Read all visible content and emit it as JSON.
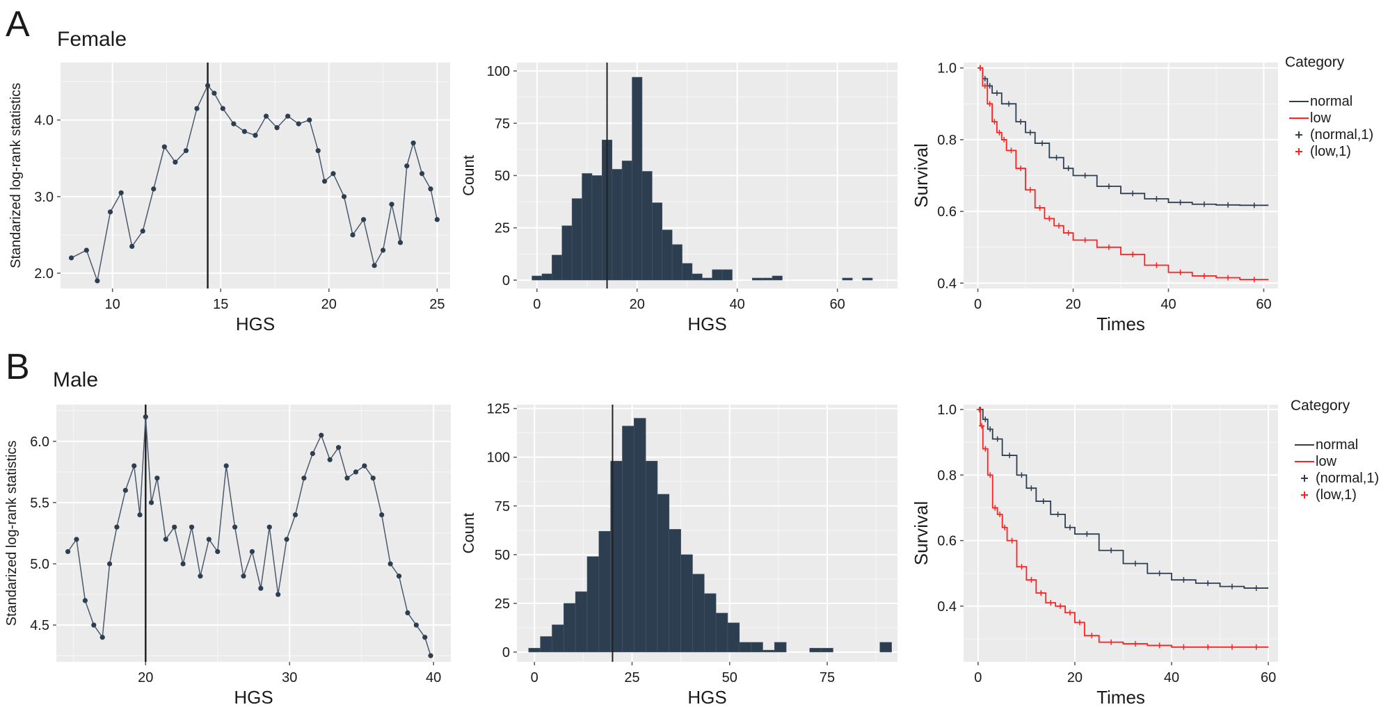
{
  "panels": [
    {
      "letter": "A",
      "title": "Female"
    },
    {
      "letter": "B",
      "title": "Male"
    }
  ],
  "colors": {
    "panel_bg": "#ebebeb",
    "grid": "#ffffff",
    "dark": "#2d3e50",
    "red": "#ff2020",
    "cutline": "#222222",
    "text": "#1a1a1a"
  },
  "chart_data": [
    {
      "id": "A1",
      "panel": "A",
      "type": "line",
      "xlabel": "HGS",
      "ylabel": "Standarized log-rank statistics",
      "xlim": [
        7.6,
        25.6
      ],
      "ylim": [
        1.8,
        4.75
      ],
      "xticks": [
        10,
        15,
        20,
        25
      ],
      "yticks": [
        2.0,
        3.0,
        4.0
      ],
      "xtick_labels": [
        "10",
        "15",
        "20",
        "25"
      ],
      "ytick_labels": [
        "2.0",
        "3.0",
        "4.0"
      ],
      "cutpoint": 14.4,
      "series": [
        {
          "x": [
            8.1,
            8.8,
            9.3,
            9.9,
            10.4,
            10.9,
            11.4,
            11.9,
            12.4,
            12.9,
            13.4,
            13.9,
            14.4,
            14.7,
            15.1,
            15.6,
            16.1,
            16.6,
            17.1,
            17.6,
            18.1,
            18.6,
            19.1,
            19.5,
            19.8,
            20.2,
            20.7,
            21.1,
            21.6,
            22.1,
            22.5,
            22.9,
            23.3,
            23.6,
            23.9,
            24.3,
            24.7,
            25.0
          ],
          "y": [
            2.2,
            2.3,
            1.9,
            2.8,
            3.05,
            2.35,
            2.55,
            3.1,
            3.65,
            3.45,
            3.6,
            4.15,
            4.45,
            4.35,
            4.15,
            3.95,
            3.85,
            3.8,
            4.05,
            3.9,
            4.05,
            3.95,
            4.0,
            3.6,
            3.2,
            3.3,
            3.0,
            2.5,
            2.7,
            2.1,
            2.3,
            2.9,
            2.4,
            3.4,
            3.7,
            3.3,
            3.1,
            2.7
          ]
        }
      ]
    },
    {
      "id": "A2",
      "panel": "A",
      "type": "bar",
      "xlabel": "HGS",
      "ylabel": "Count",
      "xlim": [
        -4,
        72
      ],
      "ylim": [
        -4,
        104
      ],
      "xticks": [
        0,
        20,
        40,
        60
      ],
      "yticks": [
        0,
        25,
        50,
        75,
        100
      ],
      "xtick_labels": [
        "0",
        "20",
        "40",
        "60"
      ],
      "ytick_labels": [
        "0",
        "25",
        "50",
        "75",
        "100"
      ],
      "cutpoint": 14,
      "bin_width": 2,
      "bin_centers": [
        0,
        2,
        4,
        6,
        8,
        10,
        12,
        14,
        16,
        18,
        20,
        22,
        24,
        26,
        28,
        30,
        32,
        34,
        36,
        38,
        40,
        42,
        44,
        46,
        48,
        50,
        52,
        54,
        56,
        58,
        60,
        62,
        64,
        66
      ],
      "values": [
        2,
        3,
        12,
        26,
        39,
        51,
        50,
        67,
        53,
        57,
        97,
        52,
        37,
        24,
        17,
        8,
        3,
        1,
        5,
        5,
        0,
        0,
        1,
        1,
        2,
        0,
        0,
        0,
        0,
        0,
        0,
        1,
        0,
        1
      ]
    },
    {
      "id": "A3",
      "panel": "A",
      "type": "line",
      "xlabel": "Times",
      "ylabel": "Survival",
      "xlim": [
        -3,
        63
      ],
      "ylim": [
        0.385,
        1.015
      ],
      "xticks": [
        0,
        20,
        40,
        60
      ],
      "yticks": [
        0.4,
        0.6,
        0.8,
        1.0
      ],
      "xtick_labels": [
        "0",
        "20",
        "40",
        "60"
      ],
      "ytick_labels": [
        "0.4",
        "0.6",
        "0.8",
        "1.0"
      ],
      "legend": {
        "title": "Category",
        "entries": [
          "normal",
          "low",
          "(normal,1)",
          "(low,1)"
        ],
        "position": "right"
      },
      "series": [
        {
          "name": "normal",
          "color": "#2d3e50",
          "x": [
            0,
            1,
            2,
            3,
            5,
            8,
            10,
            12,
            15,
            18,
            20,
            25,
            30,
            35,
            40,
            45,
            50,
            55,
            61
          ],
          "y": [
            1.0,
            0.97,
            0.95,
            0.93,
            0.9,
            0.85,
            0.82,
            0.79,
            0.75,
            0.72,
            0.7,
            0.67,
            0.65,
            0.635,
            0.625,
            0.62,
            0.618,
            0.617,
            0.617
          ]
        },
        {
          "name": "low",
          "color": "#ff2020",
          "x": [
            0,
            1,
            2,
            3,
            4,
            5,
            6,
            8,
            10,
            12,
            14,
            16,
            18,
            20,
            25,
            30,
            35,
            40,
            45,
            50,
            55,
            61
          ],
          "y": [
            1.0,
            0.95,
            0.9,
            0.85,
            0.82,
            0.8,
            0.77,
            0.72,
            0.66,
            0.61,
            0.58,
            0.56,
            0.54,
            0.52,
            0.5,
            0.48,
            0.45,
            0.43,
            0.42,
            0.415,
            0.41,
            0.41
          ]
        }
      ]
    },
    {
      "id": "B1",
      "panel": "B",
      "type": "line",
      "xlabel": "HGS",
      "ylabel": "Standarized log-rank statistics",
      "xlim": [
        13.8,
        41.2
      ],
      "ylim": [
        4.2,
        6.3
      ],
      "xticks": [
        20,
        30,
        40
      ],
      "yticks": [
        4.5,
        5.0,
        5.5,
        6.0
      ],
      "xtick_labels": [
        "20",
        "30",
        "40"
      ],
      "ytick_labels": [
        "4.5",
        "5.0",
        "5.5",
        "6.0"
      ],
      "cutpoint": 20,
      "series": [
        {
          "x": [
            14.6,
            15.2,
            15.8,
            16.4,
            17.0,
            17.5,
            18.0,
            18.6,
            19.2,
            19.6,
            20.0,
            20.4,
            20.8,
            21.4,
            22.0,
            22.6,
            23.2,
            23.8,
            24.4,
            25.0,
            25.6,
            26.2,
            26.8,
            27.4,
            28.0,
            28.6,
            29.2,
            29.8,
            30.4,
            31.0,
            31.6,
            32.2,
            32.8,
            33.4,
            34.0,
            34.6,
            35.2,
            35.8,
            36.4,
            37.0,
            37.6,
            38.2,
            38.8,
            39.4,
            39.8
          ],
          "y": [
            5.1,
            5.2,
            4.7,
            4.5,
            4.4,
            5.0,
            5.3,
            5.6,
            5.8,
            5.4,
            6.2,
            5.5,
            5.7,
            5.2,
            5.3,
            5.0,
            5.3,
            4.9,
            5.2,
            5.1,
            5.8,
            5.3,
            4.9,
            5.1,
            4.8,
            5.3,
            4.75,
            5.2,
            5.4,
            5.7,
            5.9,
            6.05,
            5.85,
            5.95,
            5.7,
            5.75,
            5.8,
            5.7,
            5.4,
            5.0,
            4.9,
            4.6,
            4.5,
            4.4,
            4.25
          ]
        }
      ]
    },
    {
      "id": "B2",
      "panel": "B",
      "type": "bar",
      "xlabel": "HGS",
      "ylabel": "Count",
      "xlim": [
        -4.5,
        93
      ],
      "ylim": [
        -5,
        127
      ],
      "xticks": [
        0,
        25,
        50,
        75
      ],
      "yticks": [
        0,
        25,
        50,
        75,
        100,
        125
      ],
      "xtick_labels": [
        "0",
        "25",
        "50",
        "75"
      ],
      "ytick_labels": [
        "0",
        "25",
        "50",
        "75",
        "100",
        "125"
      ],
      "cutpoint": 20,
      "bin_width": 3,
      "bin_centers": [
        0,
        3,
        6,
        9,
        12,
        15,
        18,
        21,
        24,
        27,
        30,
        33,
        36,
        39,
        42,
        45,
        48,
        51,
        54,
        57,
        60,
        63,
        66,
        69,
        72,
        75,
        78,
        81,
        84,
        87,
        90
      ],
      "values": [
        2,
        8,
        14,
        25,
        31,
        49,
        62,
        98,
        116,
        120,
        98,
        81,
        63,
        50,
        40,
        30,
        20,
        15,
        5,
        5,
        1,
        5,
        0,
        0,
        2,
        2,
        0,
        0,
        0,
        0,
        5
      ]
    },
    {
      "id": "B3",
      "panel": "B",
      "type": "line",
      "xlabel": "Times",
      "ylabel": "Survival",
      "xlim": [
        -3,
        62
      ],
      "ylim": [
        0.23,
        1.015
      ],
      "xticks": [
        0,
        20,
        40,
        60
      ],
      "yticks": [
        0.4,
        0.6,
        0.8,
        1.0
      ],
      "xtick_labels": [
        "0",
        "20",
        "40",
        "60"
      ],
      "ytick_labels": [
        "0.4",
        "0.6",
        "0.8",
        "1.0"
      ],
      "legend": {
        "title": "Category",
        "entries": [
          "normal",
          "low",
          "(normal,1)",
          "(low,1)"
        ],
        "position": "right"
      },
      "series": [
        {
          "name": "normal",
          "color": "#2d3e50",
          "x": [
            0,
            1,
            2,
            3,
            5,
            8,
            10,
            12,
            15,
            18,
            20,
            25,
            30,
            35,
            40,
            45,
            50,
            55,
            60
          ],
          "y": [
            1.0,
            0.97,
            0.94,
            0.91,
            0.86,
            0.8,
            0.76,
            0.72,
            0.68,
            0.64,
            0.62,
            0.57,
            0.53,
            0.5,
            0.48,
            0.47,
            0.46,
            0.455,
            0.455
          ]
        },
        {
          "name": "low",
          "color": "#ff2020",
          "x": [
            0,
            0.5,
            1,
            2,
            3,
            4,
            5,
            6,
            8,
            10,
            12,
            14,
            16,
            18,
            20,
            22,
            25,
            30,
            35,
            40,
            45,
            50,
            55,
            60
          ],
          "y": [
            1.0,
            0.95,
            0.88,
            0.8,
            0.7,
            0.68,
            0.64,
            0.6,
            0.52,
            0.48,
            0.44,
            0.41,
            0.4,
            0.38,
            0.35,
            0.31,
            0.29,
            0.285,
            0.28,
            0.275,
            0.275,
            0.275,
            0.275,
            0.275
          ]
        }
      ]
    }
  ]
}
